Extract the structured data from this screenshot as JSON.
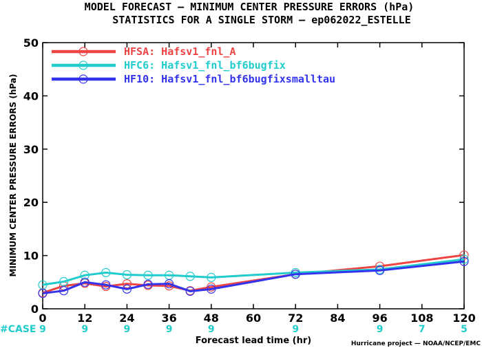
{
  "chart_data": {
    "type": "line",
    "title": "MODEL FORECAST — MINIMUM CENTER PRESSURE ERRORS (hPa)",
    "subtitle": "STATISTICS FOR A SINGLE STORM — ep062022_ESTELLE",
    "xlabel": "Forecast lead time (hr)",
    "ylabel": "MINIMUM CENTER PRESSURE ERRORS (hPa)",
    "xlim": [
      0,
      120
    ],
    "ylim": [
      0,
      50
    ],
    "xticks": [
      0,
      12,
      24,
      36,
      48,
      60,
      72,
      84,
      96,
      108,
      120
    ],
    "yticks": [
      0,
      10,
      20,
      30,
      40,
      50
    ],
    "grid": false,
    "legend_position": "top-left",
    "series": [
      {
        "name": "HFSA: Hafsv1_fnl_A",
        "color": "#ee4444",
        "x": [
          0,
          6,
          12,
          18,
          24,
          30,
          36,
          42,
          48,
          72,
          96,
          120
        ],
        "y": [
          3.0,
          4.3,
          4.8,
          4.2,
          4.7,
          4.4,
          4.3,
          3.4,
          4.1,
          6.5,
          8.0,
          10.1
        ]
      },
      {
        "name": "HFC6: Hafsv1_fnl_bf6bugfix",
        "color": "#22cccc",
        "x": [
          0,
          6,
          12,
          18,
          24,
          30,
          36,
          42,
          48,
          72,
          96,
          120
        ],
        "y": [
          4.5,
          5.1,
          6.3,
          6.8,
          6.4,
          6.3,
          6.3,
          6.1,
          5.9,
          6.8,
          7.4,
          9.3
        ]
      },
      {
        "name": "HF10: Hafsv1_fnl_bf6bugfixsmalltau",
        "color": "#3333ee",
        "x": [
          0,
          6,
          12,
          18,
          24,
          30,
          36,
          42,
          48,
          72,
          96,
          120
        ],
        "y": [
          2.9,
          3.4,
          5.0,
          4.5,
          3.7,
          4.6,
          4.7,
          3.3,
          3.7,
          6.5,
          7.2,
          8.9
        ]
      }
    ],
    "cases": {
      "label": "#CASE",
      "color": "#22cccc",
      "x": [
        0,
        12,
        24,
        36,
        48,
        72,
        96,
        108,
        120
      ],
      "values": [
        9,
        9,
        9,
        9,
        9,
        9,
        9,
        7,
        5
      ]
    },
    "credit": "Hurricane project — NOAA/NCEP/EMC"
  }
}
